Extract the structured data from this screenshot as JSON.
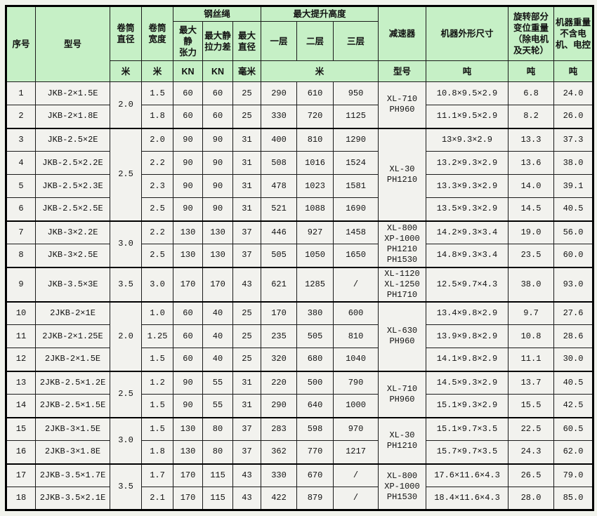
{
  "colors": {
    "header_bg": "#c6f0c6",
    "cell_bg": "#f2f2ee",
    "border": "#1b1b1b",
    "page_bg": "#f1f3ec"
  },
  "table": {
    "header": {
      "serial": "序号",
      "model": "型号",
      "drum_diameter": "卷筒\n直径",
      "drum_width": "卷筒\n宽度",
      "wire_rope": "钢丝绳",
      "max_static_tension": "最大静\n张力",
      "max_static_tension_diff": "最大静\n拉力差",
      "max_rope_diameter": "最大\n直径",
      "max_lift_height": "最大提升高度",
      "layer1": "一层",
      "layer2": "二层",
      "layer3": "三层",
      "reducer": "减速器",
      "machine_dimensions": "机器外形尺寸",
      "rotating_part_weight": "旋转部分变位重量（除电机及天轮）",
      "machine_weight": "机器重量不含电机、电控"
    },
    "units": {
      "drum_diameter": "米",
      "drum_width": "米",
      "max_static_tension": "KN",
      "max_static_tension_diff": "KN",
      "max_rope_diameter": "毫米",
      "lift_height": "米",
      "reducer": "型号",
      "machine_dimensions": "吨",
      "rotating_part_weight": "吨",
      "machine_weight": "吨"
    },
    "rows": [
      {
        "cells": [
          "1",
          "JKB-2×1.5E",
          {
            "v": "2.0",
            "rs": 2
          },
          "1.5",
          "60",
          "60",
          "25",
          "290",
          "610",
          "950",
          {
            "v": "XL-710\nPH960",
            "rs": 2
          },
          "10.8×9.5×2.9",
          "6.8",
          "24.0"
        ]
      },
      {
        "cells": [
          "2",
          "JKB-2×1.8E",
          "1.8",
          "60",
          "60",
          "25",
          "330",
          "720",
          "1125",
          "11.1×9.5×2.9",
          "8.2",
          "26.0"
        ]
      },
      {
        "group_start": true,
        "cells": [
          "3",
          "JKB-2.5×2E",
          {
            "v": "2.5",
            "rs": 4
          },
          "2.0",
          "90",
          "90",
          "31",
          "400",
          "810",
          "1290",
          {
            "v": "XL-30\nPH1210",
            "rs": 4
          },
          "13×9.3×2.9",
          "13.3",
          "37.3"
        ]
      },
      {
        "cells": [
          "4",
          "JKB-2.5×2.2E",
          "2.2",
          "90",
          "90",
          "31",
          "508",
          "1016",
          "1524",
          "13.2×9.3×2.9",
          "13.6",
          "38.0"
        ]
      },
      {
        "cells": [
          "5",
          "JKB-2.5×2.3E",
          "2.3",
          "90",
          "90",
          "31",
          "478",
          "1023",
          "1581",
          "13.3×9.3×2.9",
          "14.0",
          "39.1"
        ]
      },
      {
        "cells": [
          "6",
          "JKB-2.5×2.5E",
          "2.5",
          "90",
          "90",
          "31",
          "521",
          "1088",
          "1690",
          "13.5×9.3×2.9",
          "14.5",
          "40.5"
        ]
      },
      {
        "group_start": true,
        "cells": [
          "7",
          "JKB-3×2.2E",
          {
            "v": "3.0",
            "rs": 2
          },
          "2.2",
          "130",
          "130",
          "37",
          "446",
          "927",
          "1458",
          {
            "v": "XL-800\nXP-1000\nPH1210\nPH1530",
            "rs": 2
          },
          "14.2×9.3×3.4",
          "19.0",
          "56.0"
        ]
      },
      {
        "cells": [
          "8",
          "JKB-3×2.5E",
          "2.5",
          "130",
          "130",
          "37",
          "505",
          "1050",
          "1650",
          "14.8×9.3×3.4",
          "23.5",
          "60.0"
        ]
      },
      {
        "group_start": true,
        "cells": [
          "9",
          "JKB-3.5×3E",
          "3.5",
          "3.0",
          "170",
          "170",
          "43",
          "621",
          "1285",
          "/",
          "XL-1120\nXL-1250\nPH1710",
          "12.5×9.7×4.3",
          "38.0",
          "93.0"
        ]
      },
      {
        "group_start": true,
        "cells": [
          "10",
          "2JKB-2×1E",
          {
            "v": "2.0",
            "rs": 3
          },
          "1.0",
          "60",
          "40",
          "25",
          "170",
          "380",
          "600",
          {
            "v": "XL-630\nPH960",
            "rs": 3
          },
          "13.4×9.8×2.9",
          "9.7",
          "27.6"
        ]
      },
      {
        "cells": [
          "11",
          "2JKB-2×1.25E",
          "1.25",
          "60",
          "40",
          "25",
          "235",
          "505",
          "810",
          "13.9×9.8×2.9",
          "10.8",
          "28.6"
        ]
      },
      {
        "cells": [
          "12",
          "2JKB-2×1.5E",
          "1.5",
          "60",
          "40",
          "25",
          "320",
          "680",
          "1040",
          "14.1×9.8×2.9",
          "11.1",
          "30.0"
        ]
      },
      {
        "group_start": true,
        "cells": [
          "13",
          "2JKB-2.5×1.2E",
          {
            "v": "2.5",
            "rs": 2
          },
          "1.2",
          "90",
          "55",
          "31",
          "220",
          "500",
          "790",
          {
            "v": "XL-710\nPH960",
            "rs": 2
          },
          "14.5×9.3×2.9",
          "13.7",
          "40.5"
        ]
      },
      {
        "cells": [
          "14",
          "2JKB-2.5×1.5E",
          "1.5",
          "90",
          "55",
          "31",
          "290",
          "640",
          "1000",
          "15.1×9.3×2.9",
          "15.5",
          "42.5"
        ]
      },
      {
        "group_start": true,
        "cells": [
          "15",
          "2JKB-3×1.5E",
          {
            "v": "3.0",
            "rs": 2
          },
          "1.5",
          "130",
          "80",
          "37",
          "283",
          "598",
          "970",
          {
            "v": "XL-30\nPH1210",
            "rs": 2
          },
          "15.1×9.7×3.5",
          "22.5",
          "60.5"
        ]
      },
      {
        "cells": [
          "16",
          "2JKB-3×1.8E",
          "1.8",
          "130",
          "80",
          "37",
          "362",
          "770",
          "1217",
          "15.7×9.7×3.5",
          "24.3",
          "62.0"
        ]
      },
      {
        "group_start": true,
        "cells": [
          "17",
          "2JKB-3.5×1.7E",
          {
            "v": "3.5",
            "rs": 2
          },
          "1.7",
          "170",
          "115",
          "43",
          "330",
          "670",
          "/",
          {
            "v": "XL-800\nXP-1000\nPH1530",
            "rs": 2
          },
          "17.6×11.6×4.3",
          "26.5",
          "79.0"
        ]
      },
      {
        "cells": [
          "18",
          "2JKB-3.5×2.1E",
          "2.1",
          "170",
          "115",
          "43",
          "422",
          "879",
          "/",
          "18.4×11.6×4.3",
          "28.0",
          "85.0"
        ]
      }
    ]
  }
}
